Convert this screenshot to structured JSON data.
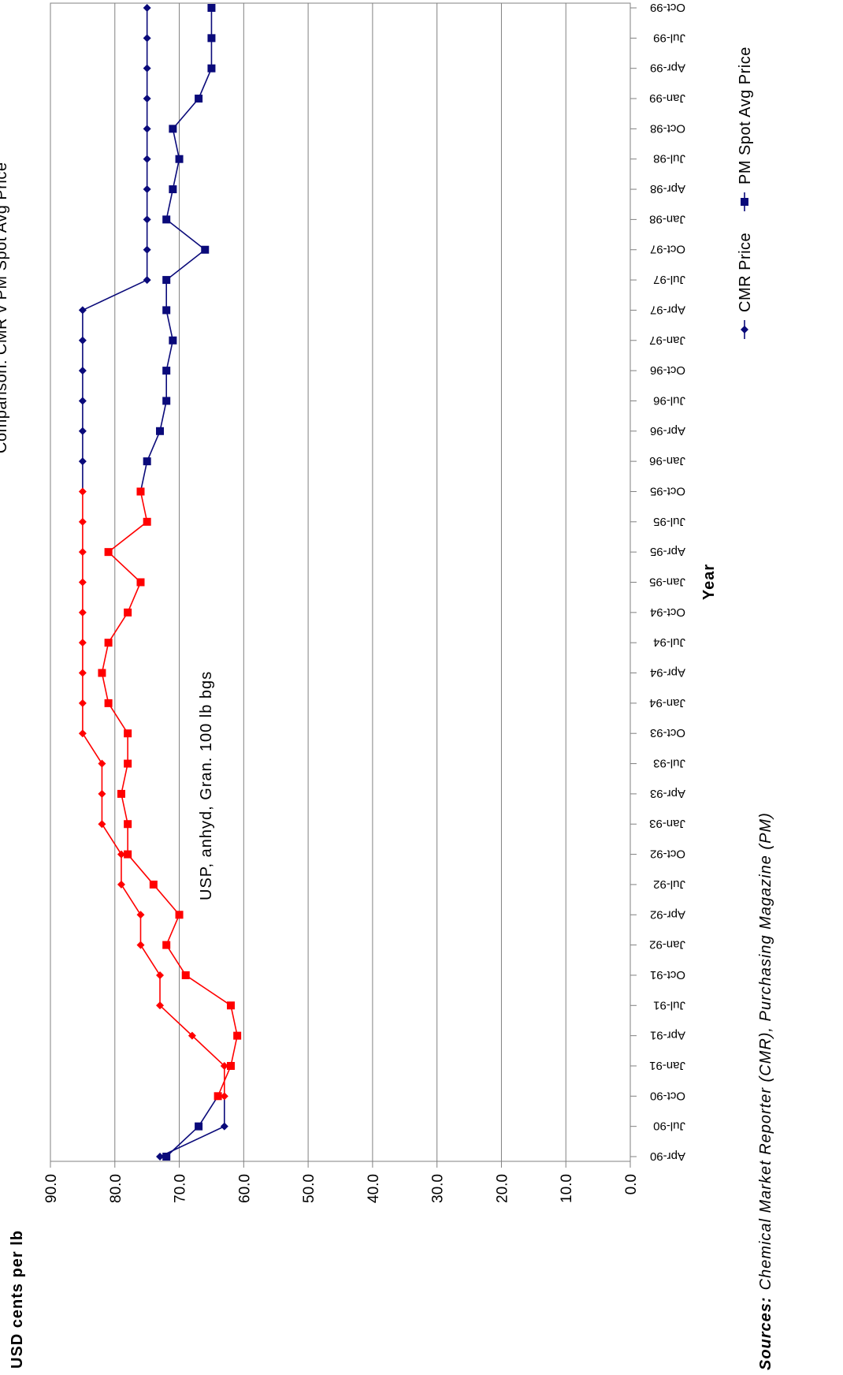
{
  "chart_data": {
    "type": "line",
    "title": "Comparison: CMR v PM Spot Avg Price",
    "xlabel": "Year",
    "ylabel": "USD cents per lb",
    "annotation": "USP, anhyd, Gran. 100 lb bgs",
    "sources_label": "Sources:",
    "sources_text": "Chemical Market Reporter (CMR), Purchasing Magazine (PM)",
    "ylim": [
      0,
      90
    ],
    "y_ticks": [
      "0.0",
      "10.0",
      "20.0",
      "30.0",
      "40.0",
      "50.0",
      "60.0",
      "70.0",
      "80.0",
      "90.0"
    ],
    "grid": true,
    "legend_placement": "bottom",
    "categories": [
      "Apr-90",
      "Jul-90",
      "Oct-90",
      "Jan-91",
      "Apr-91",
      "Jul-91",
      "Oct-91",
      "Jan-92",
      "Apr-92",
      "Jul-92",
      "Oct-92",
      "Jan-93",
      "Apr-93",
      "Jul-93",
      "Oct-93",
      "Jan-94",
      "Apr-94",
      "Jul-94",
      "Oct-94",
      "Jan-95",
      "Apr-95",
      "Jul-95",
      "Oct-95",
      "Jan-96",
      "Apr-96",
      "Jul-96",
      "Oct-96",
      "Jan-97",
      "Apr-97",
      "Jul-97",
      "Oct-97",
      "Jan-98",
      "Apr-98",
      "Jul-98",
      "Oct-98",
      "Jan-99",
      "Apr-99",
      "Jul-99",
      "Oct-99"
    ],
    "series": [
      {
        "name": "CMR Price",
        "marker": "diamond",
        "color": "#0a0a7a",
        "highlight_color": "#ff0000",
        "highlight_range": [
          2,
          22
        ],
        "values": [
          73,
          63,
          63,
          63,
          68,
          73,
          73,
          76,
          76,
          79,
          79,
          82,
          82,
          82,
          85,
          85,
          85,
          85,
          85,
          85,
          85,
          85,
          85,
          85,
          85,
          85,
          85,
          85,
          85,
          75,
          75,
          75,
          75,
          75,
          75,
          75,
          75,
          75,
          75
        ]
      },
      {
        "name": "PM Spot Avg Price",
        "marker": "square",
        "color": "#0a0a7a",
        "highlight_color": "#ff0000",
        "highlight_range": [
          2,
          22
        ],
        "values": [
          72,
          67,
          64,
          62,
          61,
          62,
          69,
          72,
          70,
          74,
          78,
          78,
          79,
          78,
          78,
          81,
          82,
          81,
          78,
          76,
          81,
          75,
          76,
          75,
          73,
          72,
          72,
          71,
          72,
          72,
          66,
          72,
          71,
          70,
          71,
          67,
          65,
          65,
          65
        ]
      }
    ]
  }
}
